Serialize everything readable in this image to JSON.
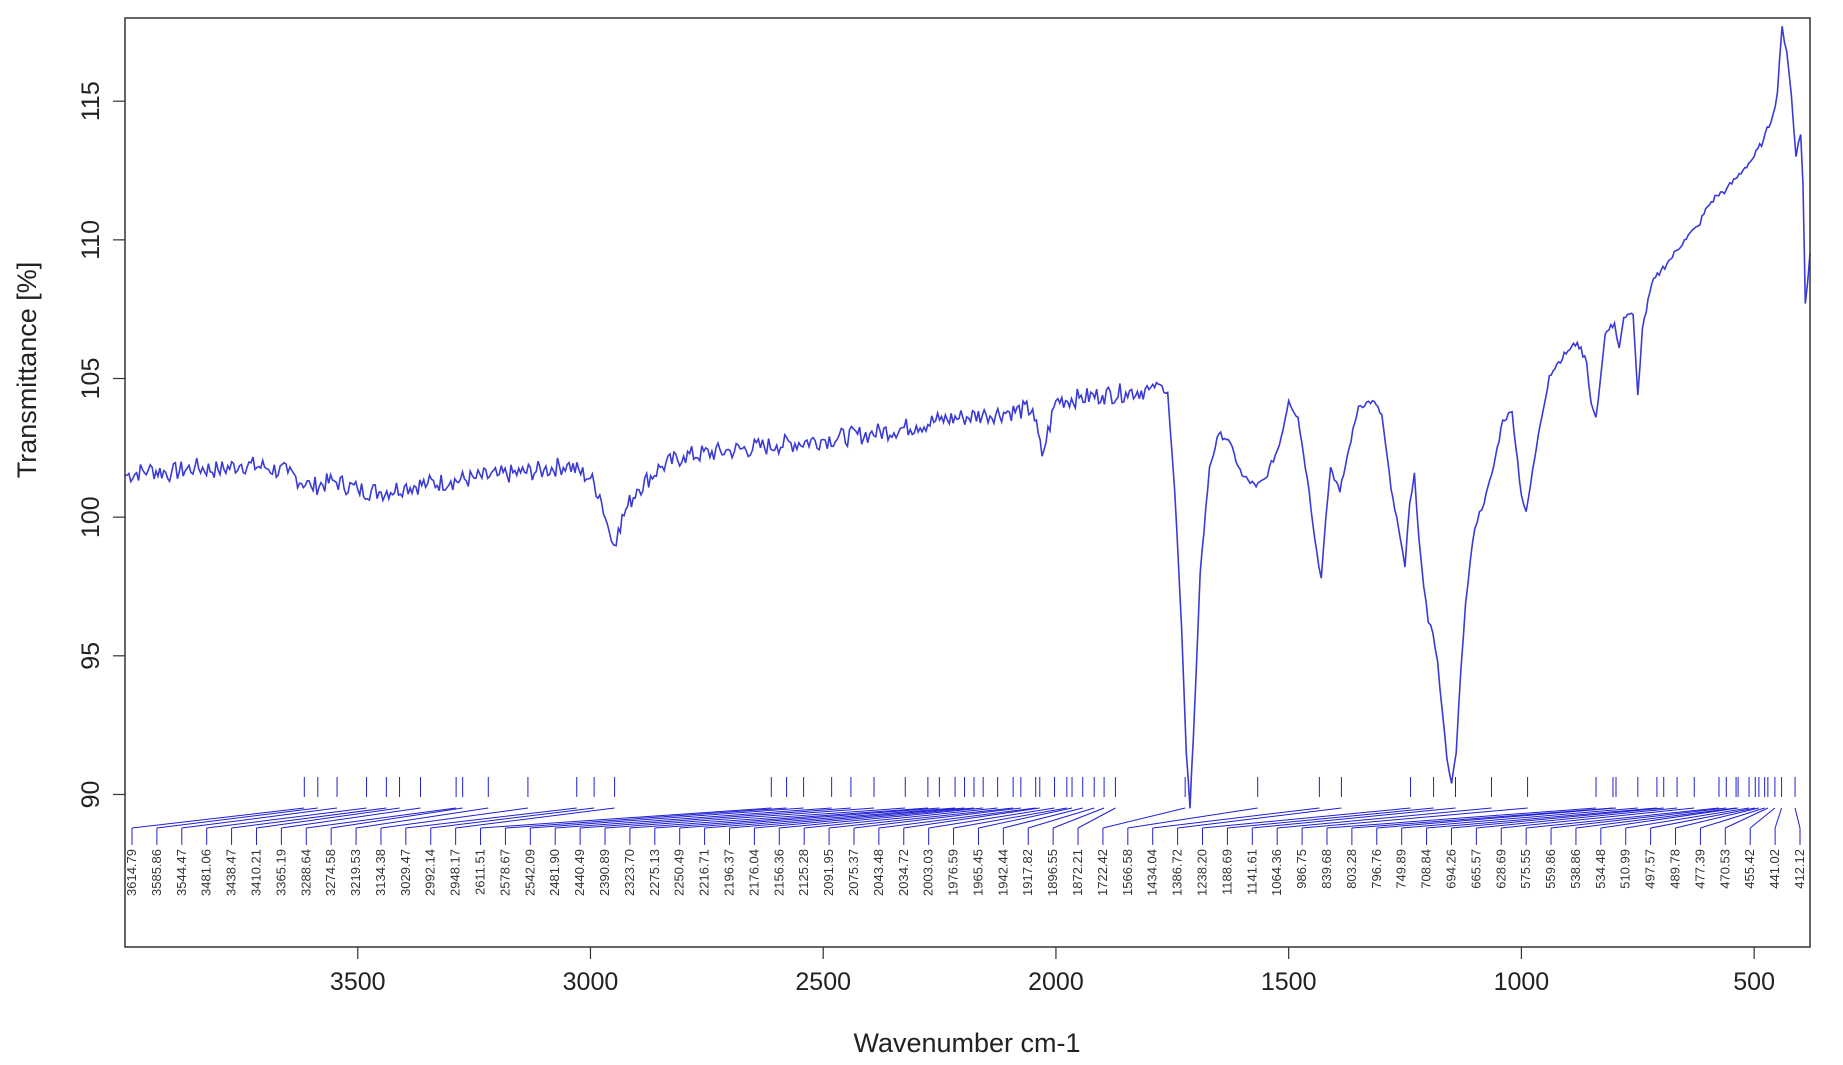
{
  "chart_data": {
    "type": "line",
    "xlabel": "Wavenumber cm-1",
    "ylabel": "Transmittance [%]",
    "x_reversed": true,
    "xlim": [
      4000,
      380
    ],
    "ylim": [
      84.5,
      118
    ],
    "x_ticks": [
      3500,
      3000,
      2500,
      2000,
      1500,
      1000,
      500
    ],
    "y_ticks": [
      90,
      95,
      100,
      105,
      110,
      115
    ],
    "grid": false,
    "line_color": "#3a3ad6",
    "peak_color": "#1f1fd0",
    "series": [
      {
        "x": [
          4000,
          3950,
          3900,
          3850,
          3800,
          3750,
          3700,
          3650,
          3600,
          3550,
          3500,
          3450,
          3400,
          3350,
          3300,
          3250,
          3200,
          3150,
          3100,
          3050,
          3000,
          2980,
          2960,
          2950,
          2940,
          2920,
          2900,
          2850,
          2800,
          2700,
          2600,
          2500,
          2400,
          2300,
          2250,
          2200,
          2150,
          2100,
          2050,
          2030,
          2000,
          1950,
          1900,
          1850,
          1800,
          1780,
          1760,
          1745,
          1730,
          1720,
          1712,
          1705,
          1690,
          1670,
          1650,
          1630,
          1600,
          1570,
          1550,
          1520,
          1500,
          1480,
          1460,
          1440,
          1430,
          1420,
          1410,
          1390,
          1370,
          1350,
          1320,
          1300,
          1280,
          1260,
          1250,
          1240,
          1230,
          1220,
          1210,
          1200,
          1190,
          1180,
          1170,
          1160,
          1150,
          1140,
          1130,
          1120,
          1110,
          1100,
          1090,
          1080,
          1060,
          1040,
          1020,
          1000,
          990,
          980,
          960,
          940,
          920,
          900,
          880,
          860,
          850,
          840,
          830,
          820,
          800,
          790,
          780,
          760,
          750,
          740,
          720,
          700,
          680,
          650,
          620,
          600,
          580,
          560,
          540,
          520,
          500,
          480,
          460,
          450,
          440,
          430,
          420,
          410,
          400,
          395,
          390,
          385,
          380
        ],
        "y": [
          101.5,
          101.7,
          101.6,
          101.8,
          101.7,
          101.9,
          101.8,
          101.6,
          101.1,
          101.3,
          101.0,
          100.9,
          101.1,
          101.2,
          101.3,
          101.4,
          101.5,
          101.6,
          101.7,
          101.9,
          101.4,
          100.8,
          99.5,
          99.0,
          99.6,
          100.4,
          101.0,
          101.8,
          102.2,
          102.4,
          102.6,
          102.8,
          103.0,
          103.3,
          103.5,
          103.6,
          103.7,
          103.8,
          103.9,
          102.2,
          104.2,
          104.3,
          104.4,
          104.5,
          104.6,
          104.8,
          104.5,
          101.0,
          96.0,
          91.5,
          89.5,
          92.0,
          98.0,
          101.8,
          103.0,
          102.8,
          101.5,
          101.1,
          101.4,
          102.6,
          104.2,
          103.6,
          101.4,
          98.8,
          97.8,
          100.0,
          101.8,
          100.9,
          102.5,
          104.0,
          104.2,
          103.7,
          101.0,
          99.2,
          98.2,
          100.5,
          101.6,
          99.2,
          97.5,
          96.2,
          95.8,
          94.8,
          93.0,
          91.3,
          90.4,
          91.5,
          94.5,
          96.9,
          98.4,
          99.6,
          100.2,
          100.5,
          101.8,
          103.5,
          103.8,
          100.8,
          100.2,
          101.2,
          103.3,
          105.1,
          105.6,
          106.0,
          106.3,
          105.6,
          104.1,
          103.6,
          105.0,
          106.6,
          107.0,
          106.1,
          107.2,
          107.3,
          104.4,
          106.8,
          108.4,
          108.9,
          109.3,
          110.0,
          110.5,
          111.2,
          111.6,
          111.8,
          112.2,
          112.6,
          113.0,
          113.6,
          114.5,
          115.3,
          117.7,
          116.8,
          115.2,
          113.0,
          113.8,
          112.0,
          107.7,
          108.5,
          109.5
        ]
      }
    ],
    "peaks": [
      {
        "x": 3614.79,
        "label": "3614.79"
      },
      {
        "x": 3585.86,
        "label": "3585.86"
      },
      {
        "x": 3544.47,
        "label": "3544.47"
      },
      {
        "x": 3481.06,
        "label": "3481.06"
      },
      {
        "x": 3438.47,
        "label": "3438.47"
      },
      {
        "x": 3410.21,
        "label": "3410.21"
      },
      {
        "x": 3365.19,
        "label": "3365.19"
      },
      {
        "x": 3288.64,
        "label": "3288.64"
      },
      {
        "x": 3274.58,
        "label": "3274.58"
      },
      {
        "x": 3219.53,
        "label": "3219.53"
      },
      {
        "x": 3134.38,
        "label": "3134.38"
      },
      {
        "x": 3029.47,
        "label": "3029.47"
      },
      {
        "x": 2992.14,
        "label": "2992.14"
      },
      {
        "x": 2948.17,
        "label": "2948.17"
      },
      {
        "x": 2611.51,
        "label": "2611.51"
      },
      {
        "x": 2578.67,
        "label": "2578.67"
      },
      {
        "x": 2542.09,
        "label": "2542.09"
      },
      {
        "x": 2481.9,
        "label": "2481.90"
      },
      {
        "x": 2440.49,
        "label": "2440.49"
      },
      {
        "x": 2390.89,
        "label": "2390.89"
      },
      {
        "x": 2323.7,
        "label": "2323.70"
      },
      {
        "x": 2275.13,
        "label": "2275.13"
      },
      {
        "x": 2250.49,
        "label": "2250.49"
      },
      {
        "x": 2216.71,
        "label": "2216.71"
      },
      {
        "x": 2196.37,
        "label": "2196.37"
      },
      {
        "x": 2176.04,
        "label": "2176.04"
      },
      {
        "x": 2156.36,
        "label": "2156.36"
      },
      {
        "x": 2125.28,
        "label": "2125.28"
      },
      {
        "x": 2091.95,
        "label": "2091.95"
      },
      {
        "x": 2075.37,
        "label": "2075.37"
      },
      {
        "x": 2043.48,
        "label": "2043.48"
      },
      {
        "x": 2034.72,
        "label": "2034.72"
      },
      {
        "x": 2003.03,
        "label": "2003.03"
      },
      {
        "x": 1976.59,
        "label": "1976.59"
      },
      {
        "x": 1965.45,
        "label": "1965.45"
      },
      {
        "x": 1942.44,
        "label": "1942.44"
      },
      {
        "x": 1917.82,
        "label": "1917.82"
      },
      {
        "x": 1896.55,
        "label": "1896.55"
      },
      {
        "x": 1872.21,
        "label": "1872.21"
      },
      {
        "x": 1722.42,
        "label": "1722.42"
      },
      {
        "x": 1566.58,
        "label": "1566.58"
      },
      {
        "x": 1434.04,
        "label": "1434.04"
      },
      {
        "x": 1386.72,
        "label": "1386.72"
      },
      {
        "x": 1238.2,
        "label": "1238.20"
      },
      {
        "x": 1188.69,
        "label": "1188.69"
      },
      {
        "x": 1141.61,
        "label": "1141.61"
      },
      {
        "x": 1064.36,
        "label": "1064.36"
      },
      {
        "x": 986.75,
        "label": "986.75"
      },
      {
        "x": 839.68,
        "label": "839.68"
      },
      {
        "x": 803.28,
        "label": "803.28"
      },
      {
        "x": 796.76,
        "label": "796.76"
      },
      {
        "x": 749.89,
        "label": "749.89"
      },
      {
        "x": 708.84,
        "label": "708.84"
      },
      {
        "x": 694.26,
        "label": "694.26"
      },
      {
        "x": 665.57,
        "label": "665.57"
      },
      {
        "x": 628.69,
        "label": "628.69"
      },
      {
        "x": 575.55,
        "label": "575.55"
      },
      {
        "x": 559.86,
        "label": "559.86"
      },
      {
        "x": 538.86,
        "label": "538.86"
      },
      {
        "x": 534.48,
        "label": "534.48"
      },
      {
        "x": 510.99,
        "label": "510.99"
      },
      {
        "x": 497.57,
        "label": "497.57"
      },
      {
        "x": 489.78,
        "label": "489.78"
      },
      {
        "x": 477.39,
        "label": "477.39"
      },
      {
        "x": 470.53,
        "label": "470.53"
      },
      {
        "x": 455.42,
        "label": "455.42"
      },
      {
        "x": 441.02,
        "label": "441.02"
      },
      {
        "x": 412.12,
        "label": "412.12"
      }
    ]
  }
}
